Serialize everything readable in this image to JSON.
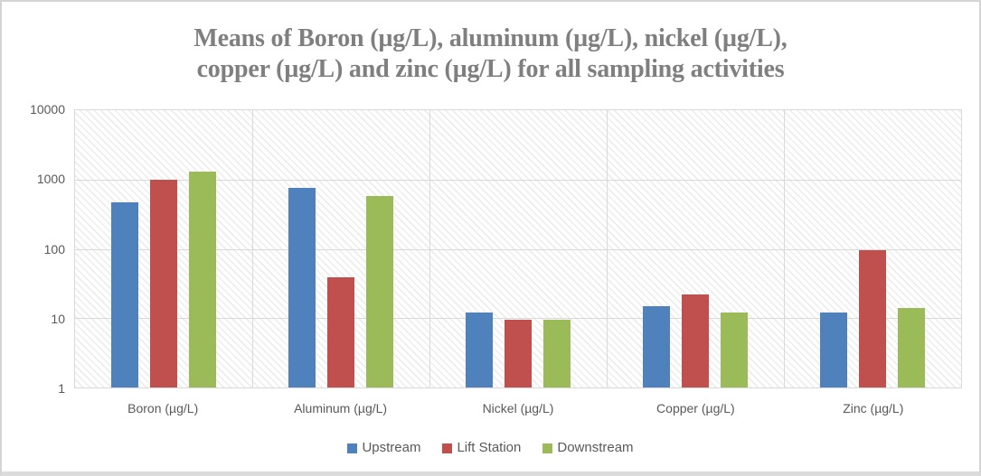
{
  "chart_data": {
    "type": "bar",
    "title": "Means of Boron (µg/L), aluminum (µg/L), nickel (µg/L), copper (µg/L) and zinc (µg/L) for all sampling activities",
    "title_lines": [
      "Means of Boron (µg/L), aluminum (µg/L), nickel (µg/L),",
      "copper (µg/L) and zinc (µg/L) for all sampling activities"
    ],
    "categories": [
      "Boron (µg/L)",
      "Aluminum (µg/L)",
      "Nickel (µg/L)",
      "Copper (µg/L)",
      "Zinc (µg/L)"
    ],
    "series": [
      {
        "name": "Upstream",
        "color": "#4F81BD",
        "values": [
          470,
          760,
          12,
          15,
          12
        ]
      },
      {
        "name": "Lift Station",
        "color": "#C0504D",
        "values": [
          1000,
          39,
          9.5,
          22,
          95
        ]
      },
      {
        "name": "Downstream",
        "color": "#9BBB59",
        "values": [
          1300,
          580,
          9.5,
          12,
          14
        ]
      }
    ],
    "y_axis": {
      "scale": "log",
      "min": 1,
      "max": 10000,
      "tick_labels": [
        "10000",
        "1000",
        "100",
        "10",
        "1"
      ]
    },
    "xlabel": "",
    "ylabel": "",
    "legend_position": "bottom",
    "grid": true
  },
  "style": {
    "title_color": "#7F7F7F",
    "axis_text_color": "#595959",
    "gridline_color": "#D9D9D9",
    "plot_fill": "pattern-light-diagonal-hatch"
  }
}
